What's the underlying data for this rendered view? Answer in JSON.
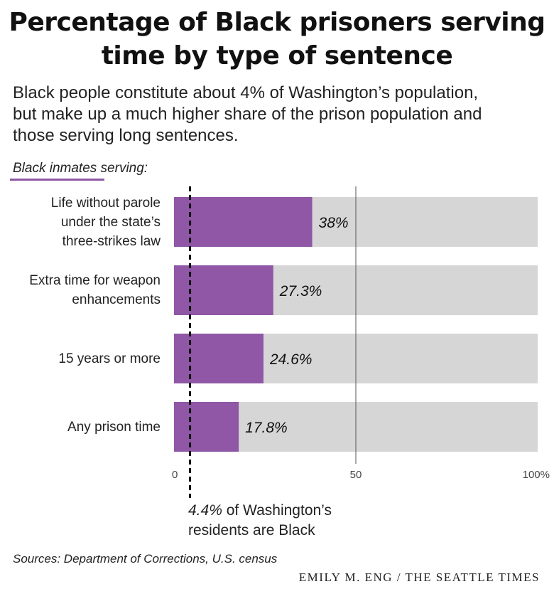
{
  "title_line1": "Percentage of Black prisoners serving",
  "title_line2": "time by type of sentence",
  "subtitle_line1": "Black people constitute about 4% of Washington’s population,",
  "subtitle_line2": "but make up a much higher share of the prison population and",
  "subtitle_line3": "those serving long sentences.",
  "group_label": "Black inmates serving:",
  "source": "Sources: Department of Corrections, U.S. census",
  "credit": "EMILY M. ENG / THE SEATTLE TIMES",
  "note_pct": "4.4%",
  "note_line1_rest": " of Washington’s",
  "note_line2": "residents are Black",
  "colors": {
    "bar": "#8f57a5",
    "track": "#d6d6d6",
    "text": "#222222"
  },
  "chart_data": {
    "type": "bar",
    "orientation": "horizontal",
    "categories": [
      [
        "Life without parole",
        "under the state’s",
        "three-strikes law"
      ],
      [
        "Extra time for weapon",
        "enhancements"
      ],
      [
        "15 years or more"
      ],
      [
        "Any prison time"
      ]
    ],
    "values": [
      38,
      27.3,
      24.6,
      17.8
    ],
    "value_labels": [
      "38%",
      "27.3%",
      "24.6%",
      "17.8%"
    ],
    "xlim": [
      0,
      100
    ],
    "xticks": [
      0,
      50,
      100
    ],
    "xtick_labels": [
      "0",
      "50",
      "100%"
    ],
    "reference_line": {
      "value": 4.4,
      "style": "dashed"
    },
    "grid": true
  }
}
